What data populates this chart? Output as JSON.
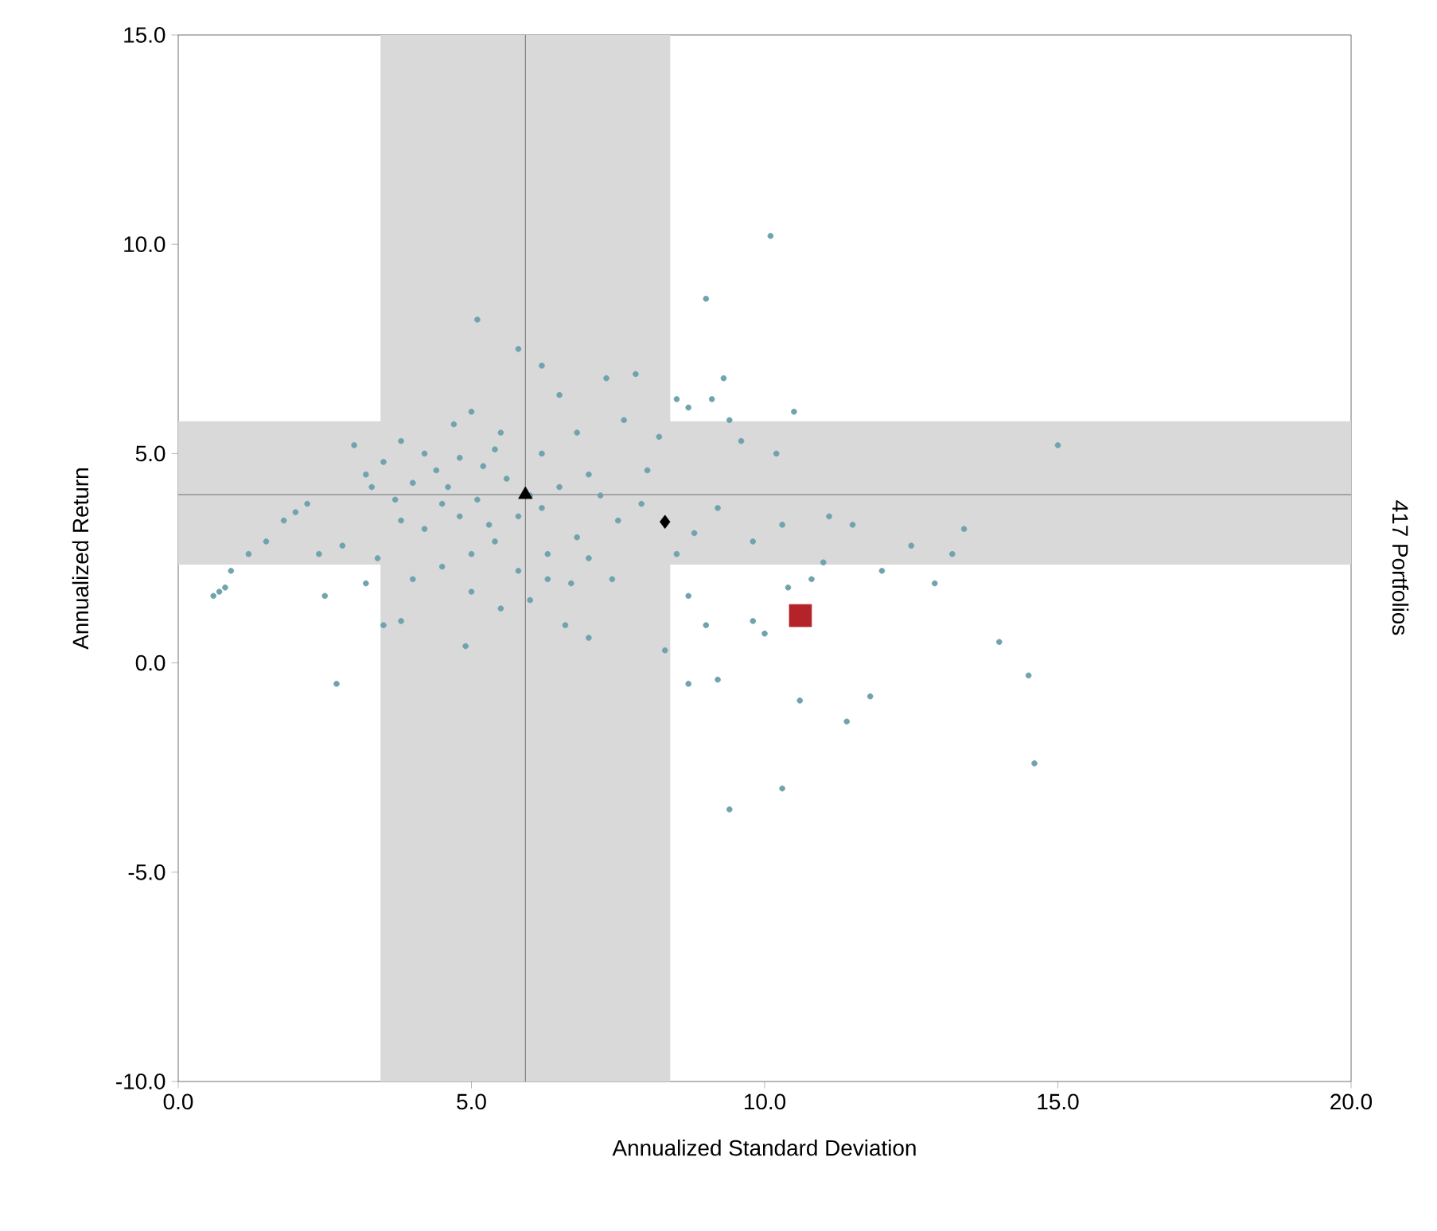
{
  "chart_data": {
    "type": "scatter",
    "xlabel": "Annualized Standard Deviation",
    "ylabel": "Annualized Return",
    "y2label": "417 Portfolios",
    "xlim": [
      0,
      20
    ],
    "ylim": [
      -10,
      15
    ],
    "xticks": [
      {
        "value": 0,
        "label": "0.0"
      },
      {
        "value": 5,
        "label": "5.0"
      },
      {
        "value": 10,
        "label": "10.0"
      },
      {
        "value": 15,
        "label": "15.0"
      },
      {
        "value": 20,
        "label": "20.0"
      }
    ],
    "yticks": [
      {
        "value": -10,
        "label": "-10.0"
      },
      {
        "value": -5,
        "label": "-5.0"
      },
      {
        "value": 0,
        "label": "0.0"
      },
      {
        "value": 5,
        "label": "5.0"
      },
      {
        "value": 10,
        "label": "10.0"
      },
      {
        "value": 15,
        "label": "15.0"
      }
    ],
    "grid": false,
    "bands": [
      {
        "axis": "x",
        "from": 3.45,
        "to": 8.39,
        "color": "#d9d9d9"
      },
      {
        "axis": "y",
        "from": 2.35,
        "to": 5.77,
        "color": "#d9d9d9"
      }
    ],
    "ref_lines": [
      {
        "axis": "x",
        "value": 5.92,
        "color": "#555555"
      },
      {
        "axis": "y",
        "value": 4.02,
        "color": "#555555"
      }
    ],
    "series": [
      {
        "color": "#6fa3ad",
        "marker": "circle",
        "x": [
          10.1,
          9.0,
          5.1,
          15.0,
          14.0,
          14.5,
          14.6,
          9.4,
          10.3,
          2.7,
          2.5,
          0.6,
          0.7,
          0.8,
          0.9,
          1.2,
          1.5,
          1.8,
          2.0,
          2.2,
          4.9,
          3.5,
          3.8,
          10.6,
          11.4,
          11.8,
          9.2,
          8.7,
          8.3,
          7.0,
          6.6,
          6.0,
          5.5,
          6.3,
          5.0,
          8.5,
          8.7,
          9.3,
          9.1,
          9.4,
          10.5,
          9.6,
          10.2,
          7.3,
          7.8,
          6.2,
          5.8,
          6.5,
          7.6,
          8.2,
          8.0,
          11.1,
          11.5,
          12.5,
          12.0,
          13.4,
          11.0,
          10.8,
          10.4,
          9.8,
          10.0,
          8.5,
          8.7,
          9.0,
          7.4,
          7.0,
          6.8,
          7.5,
          6.5,
          7.0,
          6.2,
          5.5,
          5.0,
          4.7,
          4.2,
          3.8,
          3.5,
          3.2,
          3.0,
          3.3,
          3.7,
          4.0,
          4.4,
          4.8,
          5.2,
          5.6,
          6.0,
          4.5,
          4.8,
          5.1,
          5.3,
          5.8,
          6.2,
          4.2,
          3.8,
          2.8,
          3.4,
          2.4,
          4.5,
          5.0,
          5.4,
          6.3,
          6.7,
          5.8,
          4.0,
          3.2,
          4.6,
          5.4,
          6.8,
          7.2,
          7.9,
          8.8,
          9.2,
          9.8,
          10.3,
          12.9,
          13.2
        ],
        "values": [
          10.2,
          8.7,
          8.2,
          5.2,
          0.5,
          -0.3,
          -2.4,
          -3.5,
          -3.0,
          -0.5,
          1.6,
          1.6,
          1.7,
          1.8,
          2.2,
          2.6,
          2.9,
          3.4,
          3.6,
          3.8,
          0.4,
          0.9,
          1.0,
          -0.9,
          -1.4,
          -0.8,
          -0.4,
          -0.5,
          0.3,
          0.6,
          0.9,
          1.5,
          1.3,
          2.0,
          1.7,
          6.3,
          6.1,
          6.8,
          6.3,
          5.8,
          6.0,
          5.3,
          5.0,
          6.8,
          6.9,
          7.1,
          7.5,
          6.4,
          5.8,
          5.4,
          4.6,
          3.5,
          3.3,
          2.8,
          2.2,
          3.2,
          2.4,
          2.0,
          1.8,
          1.0,
          0.7,
          2.6,
          1.6,
          0.9,
          2.0,
          2.5,
          3.0,
          3.4,
          4.2,
          4.5,
          5.0,
          5.5,
          6.0,
          5.7,
          5.0,
          5.3,
          4.8,
          4.5,
          5.2,
          4.2,
          3.9,
          4.3,
          4.6,
          4.9,
          4.7,
          4.4,
          4.0,
          3.8,
          3.5,
          3.9,
          3.3,
          3.5,
          3.7,
          3.2,
          3.4,
          2.8,
          2.5,
          2.6,
          2.3,
          2.6,
          2.9,
          2.6,
          1.9,
          2.2,
          2.0,
          1.9,
          4.2,
          5.1,
          5.5,
          4.0,
          3.8,
          3.1,
          3.7,
          2.9,
          3.3,
          1.9,
          2.6
        ]
      },
      {
        "color": "#000000",
        "marker": "triangle",
        "x": [
          5.92
        ],
        "values": [
          4.02
        ]
      },
      {
        "color": "#000000",
        "marker": "diamond",
        "x": [
          8.3
        ],
        "values": [
          3.37
        ]
      },
      {
        "color": "#b5232a",
        "marker": "square",
        "x": [
          10.61
        ],
        "values": [
          1.13
        ]
      }
    ]
  }
}
